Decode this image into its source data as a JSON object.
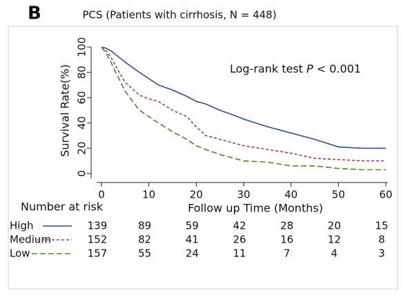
{
  "panel_label": "B",
  "chart_data": {
    "type": "line",
    "title": "PCS (Patients with cirrhosis, N = 448)",
    "ylabel": "Survival Rate(%)",
    "xlabel": "Follow up Time (Months)",
    "annotation": [
      "Log-rank test ",
      "P",
      " < 0.001"
    ],
    "risk_title": "Number at risk",
    "x": [
      0,
      1,
      2,
      3,
      5,
      8,
      10,
      12,
      15,
      18,
      20,
      22,
      25,
      28,
      30,
      35,
      40,
      45,
      50,
      55,
      60
    ],
    "series": [
      {
        "name": "High",
        "color": "#2e4f8e",
        "dash": "none",
        "values": [
          100,
          99,
          97,
          94,
          88,
          80,
          75,
          70,
          66,
          61,
          57,
          55,
          50,
          46,
          43,
          37,
          32,
          27,
          21,
          20,
          20
        ],
        "at_risk": [
          139,
          89,
          59,
          42,
          28,
          20,
          15
        ]
      },
      {
        "name": "Medium",
        "color": "#a23a4c",
        "dash": "4,3",
        "values": [
          100,
          97,
          92,
          85,
          72,
          62,
          59,
          57,
          50,
          45,
          37,
          30,
          27,
          24,
          22,
          19,
          16,
          12,
          11,
          10,
          10
        ],
        "at_risk": [
          152,
          82,
          41,
          26,
          16,
          12,
          8
        ]
      },
      {
        "name": "Low",
        "color": "#5b7a2c",
        "dash": "8,4",
        "values": [
          100,
          95,
          88,
          80,
          65,
          50,
          45,
          40,
          33,
          27,
          22,
          19,
          15,
          12,
          10,
          9,
          6,
          6,
          4,
          3,
          3
        ],
        "at_risk": [
          157,
          55,
          24,
          11,
          7,
          4,
          3
        ]
      }
    ],
    "xlim": [
      0,
      60
    ],
    "xticks": [
      0,
      10,
      20,
      30,
      40,
      50,
      60
    ],
    "ylim": [
      0,
      100
    ],
    "yticks": [
      0,
      20,
      40,
      60,
      80,
      100
    ]
  }
}
